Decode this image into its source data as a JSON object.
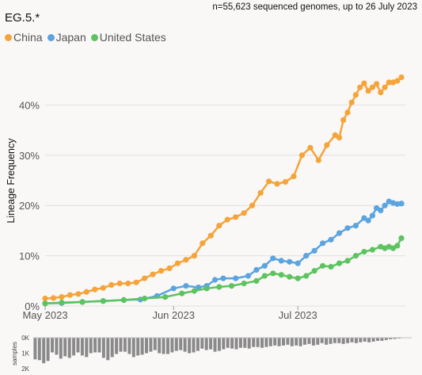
{
  "title": "EG.5.*",
  "subtitle": "n=55,623 sequenced genomes, up to 26 July 2023",
  "legend": [
    {
      "name": "China",
      "color": "#f5a43a"
    },
    {
      "name": "Japan",
      "color": "#5aa4e0"
    },
    {
      "name": "United States",
      "color": "#5cc45e"
    }
  ],
  "chart_data": [
    {
      "type": "line",
      "title": "EG.5.*",
      "ylabel": "Lineage Frequency",
      "xlabel": "",
      "x_range": [
        "2023-05-01",
        "2023-07-26"
      ],
      "x_ticks": [
        {
          "date": "2023-05-01",
          "label": "May 2023"
        },
        {
          "date": "2023-06-01",
          "label": "Jun 2023"
        },
        {
          "date": "2023-07-01",
          "label": "Jul 2023"
        }
      ],
      "ylim": [
        0,
        0.5
      ],
      "y_ticks": [
        {
          "value": 0,
          "label": "0%"
        },
        {
          "value": 0.1,
          "label": "10%"
        },
        {
          "value": 0.2,
          "label": "20%"
        },
        {
          "value": 0.3,
          "label": "30%"
        },
        {
          "value": 0.4,
          "label": "40%"
        }
      ],
      "grid": true,
      "legend_position": "top-left",
      "series": [
        {
          "name": "China",
          "color": "#f5a43a",
          "points": [
            [
              "2023-05-01",
              0.015
            ],
            [
              "2023-05-03",
              0.016
            ],
            [
              "2023-05-05",
              0.018
            ],
            [
              "2023-05-07",
              0.022
            ],
            [
              "2023-05-09",
              0.024
            ],
            [
              "2023-05-11",
              0.028
            ],
            [
              "2023-05-13",
              0.033
            ],
            [
              "2023-05-15",
              0.036
            ],
            [
              "2023-05-17",
              0.042
            ],
            [
              "2023-05-19",
              0.045
            ],
            [
              "2023-05-21",
              0.045
            ],
            [
              "2023-05-23",
              0.047
            ],
            [
              "2023-05-25",
              0.055
            ],
            [
              "2023-05-27",
              0.063
            ],
            [
              "2023-05-29",
              0.07
            ],
            [
              "2023-05-31",
              0.075
            ],
            [
              "2023-06-02",
              0.085
            ],
            [
              "2023-06-04",
              0.092
            ],
            [
              "2023-06-06",
              0.1
            ],
            [
              "2023-06-08",
              0.125
            ],
            [
              "2023-06-10",
              0.14
            ],
            [
              "2023-06-12",
              0.16
            ],
            [
              "2023-06-14",
              0.172
            ],
            [
              "2023-06-16",
              0.177
            ],
            [
              "2023-06-18",
              0.185
            ],
            [
              "2023-06-20",
              0.2
            ],
            [
              "2023-06-22",
              0.225
            ],
            [
              "2023-06-24",
              0.248
            ],
            [
              "2023-06-26",
              0.243
            ],
            [
              "2023-06-28",
              0.247
            ],
            [
              "2023-06-30",
              0.258
            ],
            [
              "2023-07-02",
              0.3
            ],
            [
              "2023-07-04",
              0.315
            ],
            [
              "2023-07-06",
              0.29
            ],
            [
              "2023-07-08",
              0.32
            ],
            [
              "2023-07-10",
              0.34
            ],
            [
              "2023-07-11",
              0.335
            ],
            [
              "2023-07-12",
              0.37
            ],
            [
              "2023-07-13",
              0.385
            ],
            [
              "2023-07-14",
              0.405
            ],
            [
              "2023-07-15",
              0.42
            ],
            [
              "2023-07-16",
              0.435
            ],
            [
              "2023-07-17",
              0.443
            ],
            [
              "2023-07-18",
              0.428
            ],
            [
              "2023-07-19",
              0.435
            ],
            [
              "2023-07-20",
              0.442
            ],
            [
              "2023-07-21",
              0.425
            ],
            [
              "2023-07-22",
              0.435
            ],
            [
              "2023-07-23",
              0.445
            ],
            [
              "2023-07-24",
              0.445
            ],
            [
              "2023-07-25",
              0.448
            ],
            [
              "2023-07-26",
              0.455
            ]
          ]
        },
        {
          "name": "Japan",
          "color": "#5aa4e0",
          "points": [
            [
              "2023-05-01",
              0.005
            ],
            [
              "2023-05-05",
              0.006
            ],
            [
              "2023-05-10",
              0.008
            ],
            [
              "2023-05-15",
              0.01
            ],
            [
              "2023-05-20",
              0.012
            ],
            [
              "2023-05-24",
              0.013
            ],
            [
              "2023-05-28",
              0.02
            ],
            [
              "2023-06-01",
              0.035
            ],
            [
              "2023-06-04",
              0.04
            ],
            [
              "2023-06-07",
              0.037
            ],
            [
              "2023-06-09",
              0.04
            ],
            [
              "2023-06-11",
              0.052
            ],
            [
              "2023-06-13",
              0.055
            ],
            [
              "2023-06-16",
              0.055
            ],
            [
              "2023-06-19",
              0.06
            ],
            [
              "2023-06-21",
              0.072
            ],
            [
              "2023-06-23",
              0.08
            ],
            [
              "2023-06-25",
              0.095
            ],
            [
              "2023-06-27",
              0.09
            ],
            [
              "2023-06-29",
              0.088
            ],
            [
              "2023-07-01",
              0.085
            ],
            [
              "2023-07-03",
              0.1
            ],
            [
              "2023-07-05",
              0.11
            ],
            [
              "2023-07-07",
              0.125
            ],
            [
              "2023-07-09",
              0.132
            ],
            [
              "2023-07-11",
              0.145
            ],
            [
              "2023-07-13",
              0.155
            ],
            [
              "2023-07-15",
              0.16
            ],
            [
              "2023-07-17",
              0.175
            ],
            [
              "2023-07-18",
              0.17
            ],
            [
              "2023-07-19",
              0.18
            ],
            [
              "2023-07-20",
              0.195
            ],
            [
              "2023-07-21",
              0.19
            ],
            [
              "2023-07-22",
              0.2
            ],
            [
              "2023-07-23",
              0.208
            ],
            [
              "2023-07-24",
              0.205
            ],
            [
              "2023-07-25",
              0.203
            ],
            [
              "2023-07-26",
              0.204
            ]
          ]
        },
        {
          "name": "United States",
          "color": "#5cc45e",
          "points": [
            [
              "2023-05-01",
              0.005
            ],
            [
              "2023-05-05",
              0.007
            ],
            [
              "2023-05-10",
              0.008
            ],
            [
              "2023-05-15",
              0.01
            ],
            [
              "2023-05-20",
              0.012
            ],
            [
              "2023-05-25",
              0.015
            ],
            [
              "2023-05-30",
              0.018
            ],
            [
              "2023-06-03",
              0.025
            ],
            [
              "2023-06-06",
              0.03
            ],
            [
              "2023-06-09",
              0.035
            ],
            [
              "2023-06-12",
              0.038
            ],
            [
              "2023-06-15",
              0.04
            ],
            [
              "2023-06-18",
              0.045
            ],
            [
              "2023-06-21",
              0.05
            ],
            [
              "2023-06-23",
              0.06
            ],
            [
              "2023-06-25",
              0.065
            ],
            [
              "2023-06-27",
              0.062
            ],
            [
              "2023-06-29",
              0.058
            ],
            [
              "2023-07-01",
              0.055
            ],
            [
              "2023-07-03",
              0.06
            ],
            [
              "2023-07-05",
              0.07
            ],
            [
              "2023-07-07",
              0.08
            ],
            [
              "2023-07-09",
              0.078
            ],
            [
              "2023-07-11",
              0.085
            ],
            [
              "2023-07-13",
              0.09
            ],
            [
              "2023-07-15",
              0.1
            ],
            [
              "2023-07-17",
              0.108
            ],
            [
              "2023-07-19",
              0.112
            ],
            [
              "2023-07-21",
              0.118
            ],
            [
              "2023-07-22",
              0.115
            ],
            [
              "2023-07-23",
              0.118
            ],
            [
              "2023-07-24",
              0.115
            ],
            [
              "2023-07-25",
              0.12
            ],
            [
              "2023-07-26",
              0.135
            ]
          ]
        }
      ]
    },
    {
      "type": "bar",
      "ylabel": "samples",
      "y_ticks": [
        {
          "value": 0,
          "label": "0K"
        },
        {
          "value": 1000,
          "label": "1K"
        },
        {
          "value": 2000,
          "label": "2K"
        }
      ],
      "ylim": [
        0,
        2000
      ],
      "x_range": [
        "2023-05-01",
        "2023-07-26"
      ],
      "values": [
        1400,
        1450,
        1650,
        1500,
        950,
        1100,
        1350,
        1200,
        1300,
        1150,
        950,
        1150,
        1250,
        1000,
        950,
        950,
        1300,
        1450,
        1250,
        1050,
        900,
        900,
        1050,
        1250,
        1150,
        1100,
        1000,
        900,
        800,
        1000,
        1050,
        1050,
        950,
        850,
        800,
        900,
        1000,
        950,
        850,
        700,
        800,
        750,
        900,
        850,
        750,
        650,
        700,
        750,
        650,
        650,
        700,
        600,
        600,
        650,
        600,
        550,
        500,
        550,
        500,
        450,
        550,
        500,
        550,
        450,
        400,
        500,
        450,
        350,
        450,
        400,
        350,
        350,
        400,
        350,
        300,
        350,
        300,
        250,
        300,
        250,
        200,
        200,
        150,
        100,
        80,
        50
      ]
    }
  ]
}
